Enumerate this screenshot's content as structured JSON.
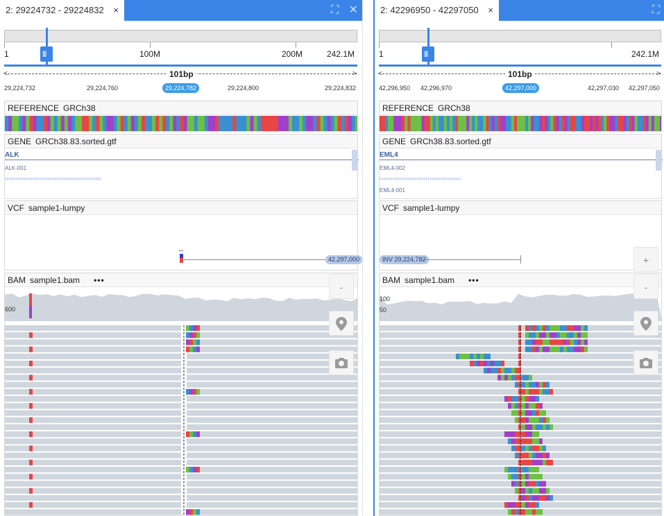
{
  "left": {
    "tab": {
      "title": "2: 29224732 - 29224832",
      "close": "×"
    },
    "chrom": {
      "ticks": [
        "1",
        "100M",
        "200M",
        "242.1M"
      ]
    },
    "bp": {
      "label": "101bp"
    },
    "positions": {
      "p1": "29,224,732",
      "p2": "29,224,760",
      "center": "29,224,782",
      "p3": "29,224,800",
      "p4": "29,224,832"
    },
    "reference": {
      "type": "REFERENCE",
      "name": "GRCh38"
    },
    "gene": {
      "type": "GENE",
      "name": "GRCh38.83.sorted.gtf",
      "gene_name": "ALK",
      "transcripts": [
        "ALK-001"
      ]
    },
    "vcf": {
      "type": "VCF",
      "name": "sample1-lumpy",
      "sv_label": "42,297,000"
    },
    "bam": {
      "type": "BAM",
      "name": "sample1.bam",
      "menu": "•••",
      "cov_labels": [
        "600"
      ]
    }
  },
  "right": {
    "tab": {
      "title": "2: 42296950 - 42297050",
      "close": "×"
    },
    "chrom": {
      "ticks": [
        "1",
        "242.1M"
      ]
    },
    "bp": {
      "label": "101bp"
    },
    "positions": {
      "p1": "42,296,950",
      "p2": "42,296,970",
      "center": "42,297,000",
      "p3": "42,297,030",
      "p4": "42,297,050"
    },
    "reference": {
      "type": "REFERENCE",
      "name": "GRCh38"
    },
    "gene": {
      "type": "GENE",
      "name": "GRCh38.83.sorted.gtf",
      "gene_name": "EML4",
      "transcripts": [
        "EML4-002",
        "EML4-001"
      ]
    },
    "vcf": {
      "type": "VCF",
      "name": "sample1-lumpy",
      "sv_label": "INV 29,224,782"
    },
    "bam": {
      "type": "BAM",
      "name": "sample1.bam",
      "menu": "•••",
      "cov_labels": [
        "100",
        "50"
      ]
    }
  },
  "controls": {
    "zoom_in": "+",
    "zoom_out": "-"
  },
  "icons": {
    "expand": "expand-icon",
    "close": "close-icon",
    "pin": "map-pin-icon",
    "camera": "camera-icon"
  },
  "colors": {
    "accent": "#3a84e8",
    "read": "#cfd6dd",
    "A": "#6dbf45",
    "C": "#3a8fd0",
    "G": "#a040c8",
    "T": "#e84545"
  }
}
